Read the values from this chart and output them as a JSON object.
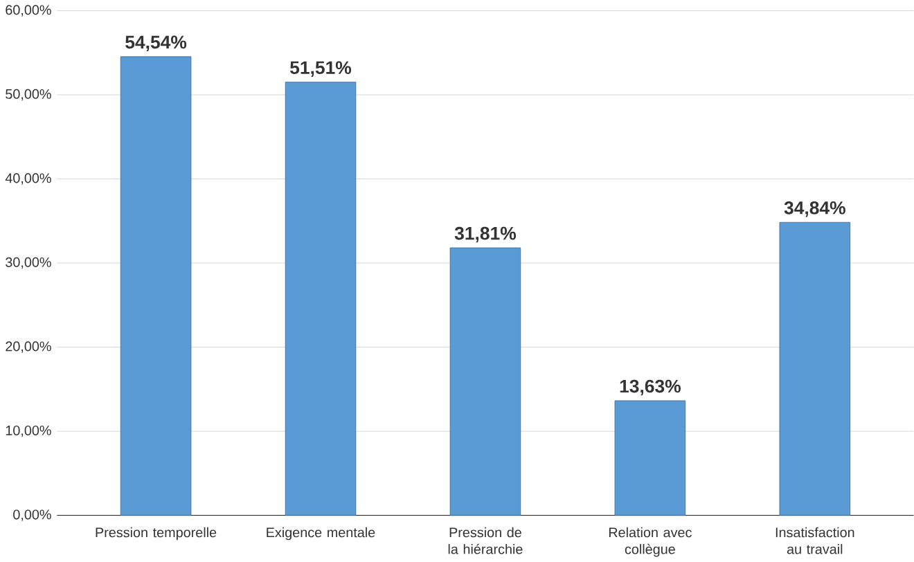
{
  "chart_data": {
    "type": "bar",
    "categories": [
      "Pression temporelle",
      "Exigence mentale",
      "Pression de la hiérarchie",
      "Relation avec collègue",
      "Insatisfaction au travail"
    ],
    "values": [
      54.54,
      51.51,
      31.81,
      13.63,
      34.84
    ],
    "value_labels": [
      "54,54%",
      "51,51%",
      "31,81%",
      "13,63%",
      "34,84%"
    ],
    "color": "#5b9bd5",
    "ylim": [
      0,
      60
    ],
    "yticks": [
      {
        "value": 0,
        "label": "0,00%"
      },
      {
        "value": 10,
        "label": "10,00%"
      },
      {
        "value": 20,
        "label": "20,00%"
      },
      {
        "value": 30,
        "label": "30,00%"
      },
      {
        "value": 40,
        "label": "40,00%"
      },
      {
        "value": 50,
        "label": "50,00%"
      },
      {
        "value": 60,
        "label": "60,00%"
      }
    ],
    "grid": "y"
  }
}
